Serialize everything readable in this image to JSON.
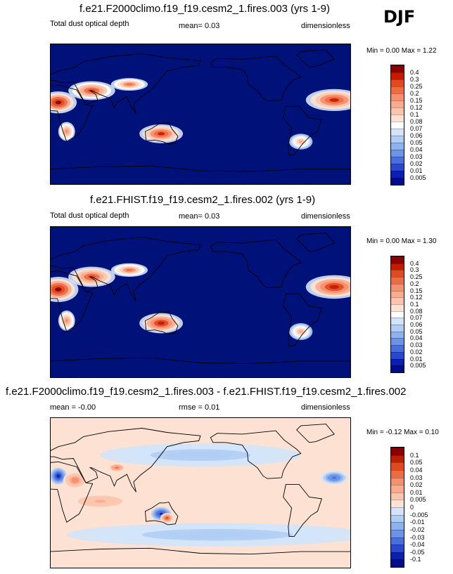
{
  "season": "DJF",
  "panels": [
    {
      "title": "f.e21.F2000climo.f19_f19.cesm2_1.fires.003 (yrs 1-9)",
      "left_label": "Total dust optical depth",
      "stat_label": "mean=   0.03",
      "units": "dimensionless",
      "minmax": "Min =   0.00 Max =   1.22",
      "colorbar": {
        "labels": [
          "0.4",
          "0.3",
          "0.25",
          "0.2",
          "0.15",
          "0.12",
          "0.1",
          "0.08",
          "0.07",
          "0.06",
          "0.05",
          "0.04",
          "0.03",
          "0.02",
          "0.01",
          "0.005"
        ],
        "colors": [
          "#8b0000",
          "#c41a00",
          "#e04a1e",
          "#ee6c44",
          "#f68f6b",
          "#f9ab8e",
          "#fbc5ad",
          "#fde2d3",
          "#ffffff",
          "#d3e4fa",
          "#b0cdf4",
          "#8db2ee",
          "#6b93e6",
          "#4a6fdd",
          "#2a48cd",
          "#0a1fb3",
          "#000d8a"
        ],
        "background": "#00127a",
        "hotspots": [
          {
            "lon": 10,
            "lat": 15,
            "intensity": 1.0,
            "rx": 22,
            "ry": 14
          },
          {
            "lon": 50,
            "lat": 30,
            "intensity": 0.8,
            "rx": 28,
            "ry": 12
          },
          {
            "lon": 95,
            "lat": 38,
            "intensity": 0.7,
            "rx": 22,
            "ry": 8
          },
          {
            "lon": 133,
            "lat": -25,
            "intensity": 0.9,
            "rx": 26,
            "ry": 12
          },
          {
            "lon": 20,
            "lat": -22,
            "intensity": 0.6,
            "rx": 10,
            "ry": 12
          },
          {
            "lon": 340,
            "lat": 18,
            "intensity": 0.9,
            "rx": 34,
            "ry": 14
          },
          {
            "lon": 300,
            "lat": -35,
            "intensity": 0.5,
            "rx": 14,
            "ry": 10
          }
        ]
      }
    },
    {
      "title": "f.e21.FHIST.f19_f19.cesm2_1.fires.002 (yrs 1-9)",
      "left_label": "Total dust optical depth",
      "stat_label": "mean=   0.03",
      "units": "dimensionless",
      "minmax": "Min =   0.00 Max =   1.30",
      "colorbar": {
        "labels": [
          "0.4",
          "0.3",
          "0.25",
          "0.2",
          "0.15",
          "0.12",
          "0.1",
          "0.08",
          "0.07",
          "0.06",
          "0.05",
          "0.04",
          "0.03",
          "0.02",
          "0.01",
          "0.005"
        ],
        "colors": [
          "#8b0000",
          "#c41a00",
          "#e04a1e",
          "#ee6c44",
          "#f68f6b",
          "#f9ab8e",
          "#fbc5ad",
          "#fde2d3",
          "#ffffff",
          "#d3e4fa",
          "#b0cdf4",
          "#8db2ee",
          "#6b93e6",
          "#4a6fdd",
          "#2a48cd",
          "#0a1fb3",
          "#000d8a"
        ],
        "background": "#00127a",
        "hotspots": [
          {
            "lon": 10,
            "lat": 15,
            "intensity": 1.0,
            "rx": 24,
            "ry": 15
          },
          {
            "lon": 50,
            "lat": 30,
            "intensity": 0.85,
            "rx": 28,
            "ry": 12
          },
          {
            "lon": 95,
            "lat": 38,
            "intensity": 0.7,
            "rx": 22,
            "ry": 8
          },
          {
            "lon": 133,
            "lat": -25,
            "intensity": 0.95,
            "rx": 26,
            "ry": 12
          },
          {
            "lon": 20,
            "lat": -22,
            "intensity": 0.6,
            "rx": 10,
            "ry": 12
          },
          {
            "lon": 340,
            "lat": 18,
            "intensity": 0.95,
            "rx": 34,
            "ry": 14
          },
          {
            "lon": 300,
            "lat": -35,
            "intensity": 0.5,
            "rx": 14,
            "ry": 10
          }
        ]
      }
    },
    {
      "title": "f.e21.F2000climo.f19_f19.cesm2_1.fires.003 - f.e21.FHIST.f19_f19.cesm2_1.fires.002",
      "left_label": "mean = -0.00",
      "stat_label": "rmse =   0.01",
      "units": "dimensionless",
      "minmax": "Min =  -0.12 Max =   0.10",
      "colorbar": {
        "labels": [
          "0.1",
          "0.05",
          "0.04",
          "0.03",
          "0.02",
          "0.01",
          "0.005",
          "0",
          "-0.005",
          "-0.01",
          "-0.02",
          "-0.03",
          "-0.04",
          "-0.05",
          "-0.1"
        ],
        "colors": [
          "#8b0000",
          "#c41a00",
          "#e04a1e",
          "#ee6c44",
          "#f68f6b",
          "#f9ab8e",
          "#fbc5ad",
          "#fde2d3",
          "#d3e4fa",
          "#b0cdf4",
          "#8db2ee",
          "#6b93e6",
          "#4a6fdd",
          "#2a48cd",
          "#0a1fb3",
          "#000d8a"
        ],
        "background": "#fde2d3",
        "hotspots": [
          {
            "lon": 10,
            "lat": 20,
            "intensity": -0.9,
            "rx": 10,
            "ry": 10
          },
          {
            "lon": 30,
            "lat": 15,
            "intensity": 0.5,
            "rx": 14,
            "ry": 10
          },
          {
            "lon": 133,
            "lat": -25,
            "intensity": -0.8,
            "rx": 12,
            "ry": 8
          },
          {
            "lon": 140,
            "lat": -30,
            "intensity": 0.7,
            "rx": 8,
            "ry": 6
          },
          {
            "lon": 340,
            "lat": 18,
            "intensity": -0.6,
            "rx": 16,
            "ry": 8
          },
          {
            "lon": 200,
            "lat": -50,
            "intensity": -0.2,
            "rx": 180,
            "ry": 14
          },
          {
            "lon": 180,
            "lat": 45,
            "intensity": -0.2,
            "rx": 120,
            "ry": 14
          },
          {
            "lon": 60,
            "lat": -10,
            "intensity": 0.3,
            "rx": 40,
            "ry": 10
          },
          {
            "lon": 80,
            "lat": 30,
            "intensity": 0.6,
            "rx": 10,
            "ry": 5
          }
        ]
      }
    }
  ],
  "chart_data": [
    {
      "type": "heatmap",
      "title": "f.e21.F2000climo.f19_f19.cesm2_1.fires.003 (yrs 1-9)",
      "variable": "Total dust optical depth",
      "mean": 0.03,
      "units": "dimensionless",
      "min": 0.0,
      "max": 1.22,
      "levels": [
        0.005,
        0.01,
        0.02,
        0.03,
        0.04,
        0.05,
        0.06,
        0.07,
        0.08,
        0.1,
        0.12,
        0.15,
        0.2,
        0.25,
        0.3,
        0.4
      ]
    },
    {
      "type": "heatmap",
      "title": "f.e21.FHIST.f19_f19.cesm2_1.fires.002 (yrs 1-9)",
      "variable": "Total dust optical depth",
      "mean": 0.03,
      "units": "dimensionless",
      "min": 0.0,
      "max": 1.3,
      "levels": [
        0.005,
        0.01,
        0.02,
        0.03,
        0.04,
        0.05,
        0.06,
        0.07,
        0.08,
        0.1,
        0.12,
        0.15,
        0.2,
        0.25,
        0.3,
        0.4
      ]
    },
    {
      "type": "heatmap",
      "title": "f.e21.F2000climo.f19_f19.cesm2_1.fires.003 - f.e21.FHIST.f19_f19.cesm2_1.fires.002",
      "mean": -0.0,
      "rmse": 0.01,
      "units": "dimensionless",
      "min": -0.12,
      "max": 0.1,
      "levels": [
        -0.1,
        -0.05,
        -0.04,
        -0.03,
        -0.02,
        -0.01,
        -0.005,
        0,
        0.005,
        0.01,
        0.02,
        0.03,
        0.04,
        0.05,
        0.1
      ]
    }
  ]
}
